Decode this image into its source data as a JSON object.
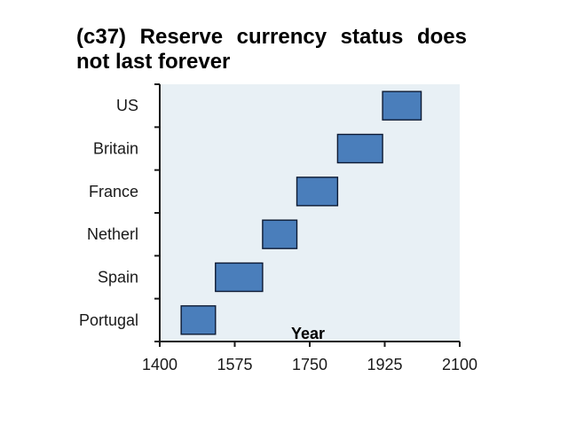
{
  "chart_data": {
    "type": "bar",
    "orientation": "horizontal-range",
    "title": "(c37) Reserve currency status does not last forever",
    "xlabel": "Year",
    "ylabel": "",
    "xlim": [
      1400,
      2100
    ],
    "xticks": [
      "1400",
      "1575",
      "1750",
      "1925",
      "2100"
    ],
    "categories": [
      "Portugal",
      "Spain",
      "Netherl",
      "France",
      "Britain",
      "US"
    ],
    "ranges": [
      {
        "start": 1450,
        "end": 1530
      },
      {
        "start": 1530,
        "end": 1640
      },
      {
        "start": 1640,
        "end": 1720
      },
      {
        "start": 1720,
        "end": 1815
      },
      {
        "start": 1815,
        "end": 1920
      },
      {
        "start": 1920,
        "end": 2010
      }
    ],
    "grid": false,
    "legend": "none",
    "colors": {
      "bar_fill": "#4a7ebb",
      "bar_stroke": "#0d1a33",
      "plot_background": "#e8f0f5",
      "axis": "#1a1a1a"
    }
  }
}
